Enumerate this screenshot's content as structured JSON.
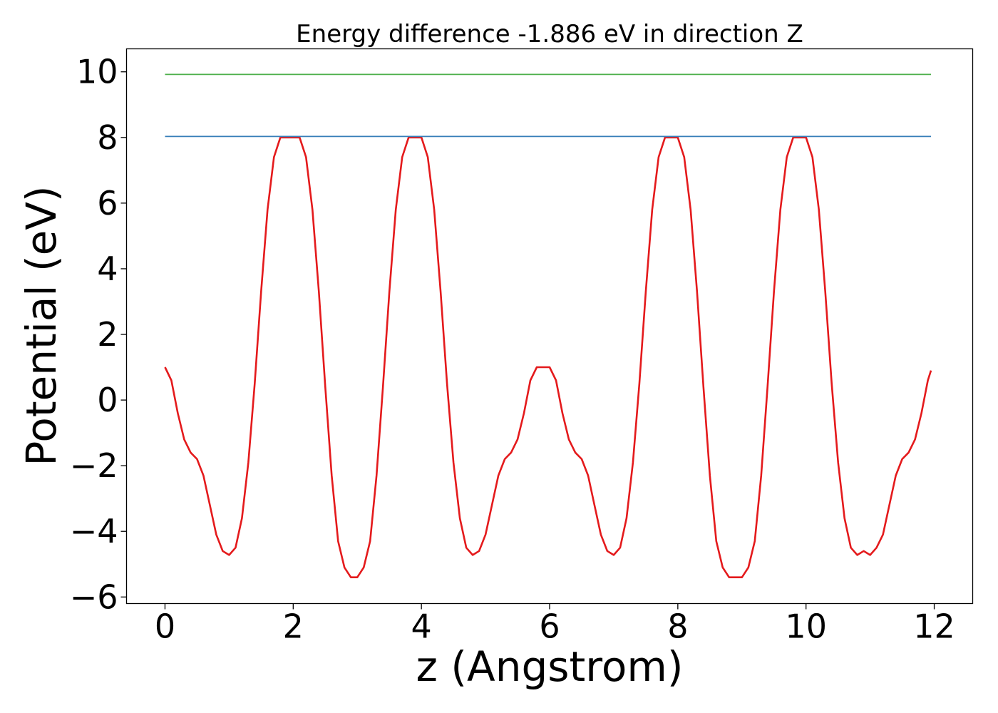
{
  "chart_data": {
    "type": "line",
    "title": "Energy difference -1.886 eV in direction Z",
    "xlabel": "z (Angstrom)",
    "ylabel": "Potential (eV)",
    "xlim": [
      -0.6,
      12.6
    ],
    "ylim": [
      -6.2,
      10.7
    ],
    "xticks": [
      0,
      2,
      4,
      6,
      8,
      10,
      12
    ],
    "yticks": [
      -6,
      -4,
      -2,
      0,
      2,
      4,
      6,
      8,
      10
    ],
    "x_tick_labels": [
      "0",
      "2",
      "4",
      "6",
      "8",
      "10",
      "12"
    ],
    "y_tick_labels": [
      "−6",
      "−4",
      "−2",
      "0",
      "2",
      "4",
      "6",
      "8",
      "10"
    ],
    "grid": false,
    "legend": "none",
    "series": [
      {
        "color": "#e41a1c",
        "x": [
          0,
          0.1,
          0.2,
          0.3,
          0.4,
          0.5,
          0.6,
          0.7,
          0.8,
          0.9,
          1.0,
          1.1,
          1.2,
          1.3,
          1.4,
          1.5,
          1.6,
          1.7,
          1.8,
          1.9,
          2.0,
          2.1,
          2.2,
          2.3,
          2.4,
          2.5,
          2.6,
          2.7,
          2.8,
          2.9,
          3.0,
          3.1,
          3.2,
          3.3,
          3.4,
          3.5,
          3.6,
          3.7,
          3.8,
          3.9,
          4.0,
          4.1,
          4.2,
          4.3,
          4.4,
          4.5,
          4.6,
          4.7,
          4.8,
          4.9,
          5.0,
          5.1,
          5.2,
          5.3,
          5.4,
          5.5,
          5.6,
          5.7,
          5.8,
          5.9,
          6.0,
          6.1,
          6.2,
          6.3,
          6.4,
          6.5,
          6.6,
          6.7,
          6.8,
          6.9,
          7.0,
          7.1,
          7.2,
          7.3,
          7.4,
          7.5,
          7.6,
          7.7,
          7.8,
          7.9,
          8.0,
          8.1,
          8.2,
          8.3,
          8.4,
          8.5,
          8.6,
          8.7,
          8.8,
          8.9,
          9.0,
          9.1,
          9.2,
          9.3,
          9.4,
          9.5,
          9.6,
          9.7,
          9.8,
          9.9,
          10.0,
          10.1,
          10.2,
          10.3,
          10.4,
          10.5,
          10.6,
          10.7,
          10.8,
          10.9,
          11.0,
          11.1,
          11.2,
          11.3,
          11.4,
          11.5,
          11.6,
          11.7,
          11.8,
          11.9,
          11.95
        ],
        "y": [
          1.0,
          0.6,
          -0.4,
          -1.2,
          -1.6,
          -1.8,
          -2.3,
          -3.2,
          -4.1,
          -4.6,
          -4.72,
          -4.5,
          -3.6,
          -1.9,
          0.5,
          3.3,
          5.8,
          7.4,
          8.0,
          8.0,
          8.0,
          8.0,
          7.4,
          5.8,
          3.3,
          0.4,
          -2.3,
          -4.3,
          -5.1,
          -5.4,
          -5.4,
          -5.1,
          -4.3,
          -2.3,
          0.4,
          3.3,
          5.8,
          7.4,
          8.0,
          8.0,
          8.0,
          7.4,
          5.8,
          3.3,
          0.5,
          -1.9,
          -3.6,
          -4.5,
          -4.72,
          -4.6,
          -4.1,
          -3.2,
          -2.3,
          -1.8,
          -1.6,
          -1.2,
          -0.4,
          0.6,
          1.0,
          1.0,
          1.0,
          0.6,
          -0.4,
          -1.2,
          -1.6,
          -1.8,
          -2.3,
          -3.2,
          -4.1,
          -4.6,
          -4.72,
          -4.5,
          -3.6,
          -1.9,
          0.5,
          3.3,
          5.8,
          7.4,
          8.0,
          8.0,
          8.0,
          7.4,
          5.8,
          3.3,
          0.4,
          -2.3,
          -4.3,
          -5.1,
          -5.4,
          -5.4,
          -5.4,
          -5.1,
          -4.3,
          -2.3,
          0.4,
          3.3,
          5.8,
          7.4,
          8.0,
          8.0,
          8.0,
          7.4,
          5.8,
          3.3,
          0.5,
          -1.9,
          -3.6,
          -4.5,
          -4.72,
          -4.6,
          -4.72,
          -4.5,
          -4.1,
          -3.2,
          -2.3,
          -1.8,
          -1.6,
          -1.2,
          -0.4,
          0.6,
          0.9
        ]
      },
      {
        "color": "#377eb8",
        "x": [
          0,
          11.95
        ],
        "y": [
          8.03,
          8.03
        ]
      },
      {
        "color": "#4daf4a",
        "x": [
          0,
          11.95
        ],
        "y": [
          9.92,
          9.92
        ]
      }
    ]
  }
}
